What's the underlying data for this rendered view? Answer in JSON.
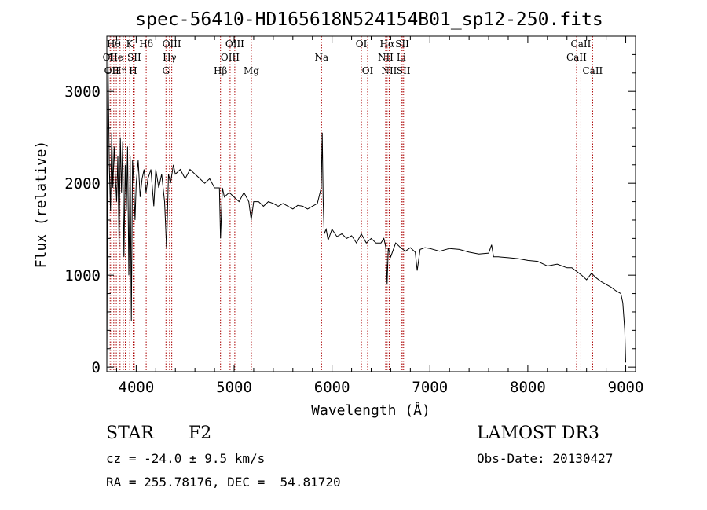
{
  "chart_data": {
    "type": "line",
    "title": "spec-56410-HD165618N524154B01_sp12-250.fits",
    "xlabel": "Wavelength (Å)",
    "ylabel": "Flux (relative)",
    "xlim": [
      3700,
      9100
    ],
    "ylim": [
      -50,
      3600
    ],
    "xticks": [
      4000,
      5000,
      6000,
      7000,
      8000,
      9000
    ],
    "xtick_labels": [
      "4000",
      "5000",
      "6000",
      "7000",
      "8000",
      "9000"
    ],
    "yticks": [
      0,
      1000,
      2000,
      3000
    ],
    "ytick_labels": [
      "0",
      "1000",
      "2000",
      "3000"
    ],
    "grid": false,
    "legend": "none",
    "line_color": "#000000",
    "marker_color": "#aa0000",
    "series": [
      {
        "x": [
          3700,
          3712,
          3725,
          3738,
          3750,
          3762,
          3775,
          3788,
          3800,
          3812,
          3825,
          3838,
          3850,
          3862,
          3875,
          3888,
          3900,
          3912,
          3925,
          3938,
          3950,
          3962,
          3975,
          3988,
          4000,
          4020,
          4040,
          4060,
          4080,
          4100,
          4120,
          4150,
          4180,
          4200,
          4230,
          4260,
          4290,
          4310,
          4330,
          4350,
          4380,
          4400,
          4450,
          4500,
          4550,
          4600,
          4650,
          4700,
          4750,
          4800,
          4850,
          4861,
          4880,
          4900,
          4950,
          5000,
          5050,
          5100,
          5150,
          5175,
          5200,
          5250,
          5300,
          5350,
          5400,
          5450,
          5500,
          5550,
          5600,
          5650,
          5700,
          5750,
          5800,
          5850,
          5890,
          5900,
          5910,
          5920,
          5940,
          5960,
          6000,
          6050,
          6100,
          6150,
          6200,
          6250,
          6300,
          6350,
          6400,
          6450,
          6500,
          6530,
          6550,
          6563,
          6575,
          6600,
          6650,
          6700,
          6750,
          6800,
          6850,
          6870,
          6900,
          6950,
          7000,
          7100,
          7200,
          7300,
          7400,
          7500,
          7600,
          7630,
          7650,
          7700,
          7800,
          7900,
          8000,
          8100,
          8200,
          8300,
          8400,
          8450,
          8500,
          8550,
          8600,
          8650,
          8700,
          8750,
          8800,
          8850,
          8900,
          8950,
          8970,
          8990,
          9000
        ],
        "y": [
          0,
          3350,
          2200,
          1700,
          2550,
          1950,
          2400,
          2050,
          1800,
          2300,
          1300,
          2500,
          1900,
          2450,
          1200,
          2200,
          1700,
          2400,
          1000,
          2300,
          500,
          2250,
          2000,
          1600,
          2000,
          2250,
          1850,
          2050,
          2150,
          1900,
          2050,
          2150,
          1750,
          2150,
          1950,
          2100,
          1800,
          1300,
          2100,
          2000,
          2200,
          2100,
          2150,
          2050,
          2150,
          2100,
          2050,
          2000,
          2050,
          1950,
          1950,
          1400,
          1950,
          1850,
          1900,
          1850,
          1800,
          1900,
          1800,
          1600,
          1800,
          1800,
          1750,
          1800,
          1780,
          1750,
          1780,
          1750,
          1720,
          1760,
          1750,
          1720,
          1750,
          1780,
          1950,
          2550,
          1800,
          1450,
          1500,
          1380,
          1500,
          1420,
          1450,
          1400,
          1430,
          1350,
          1450,
          1350,
          1400,
          1350,
          1350,
          1400,
          1300,
          900,
          1300,
          1200,
          1350,
          1300,
          1260,
          1300,
          1250,
          1050,
          1280,
          1300,
          1290,
          1260,
          1290,
          1280,
          1250,
          1230,
          1240,
          1330,
          1200,
          1200,
          1190,
          1180,
          1160,
          1150,
          1100,
          1120,
          1080,
          1080,
          1040,
          1000,
          950,
          1020,
          970,
          930,
          900,
          870,
          830,
          800,
          700,
          400,
          50
        ]
      }
    ],
    "line_markers": [
      {
        "w": 3734,
        "label": "OII",
        "row": 1
      },
      {
        "w": 3750,
        "label": "OII",
        "row": 2
      },
      {
        "w": 3771,
        "label": "Hθ",
        "row": 0
      },
      {
        "w": 3797,
        "label": "He",
        "row": 1
      },
      {
        "w": 3835,
        "label": "Hη",
        "row": 2
      },
      {
        "w": 3868,
        "label": "",
        "row": 0
      },
      {
        "w": 3889,
        "label": "",
        "row": 0
      },
      {
        "w": 3934,
        "label": "K",
        "row": 0
      },
      {
        "w": 3969,
        "label": "H",
        "row": 2
      },
      {
        "w": 3980,
        "label": "SII",
        "row": 1
      },
      {
        "w": 4102,
        "label": "Hδ",
        "row": 0
      },
      {
        "w": 4304,
        "label": "G",
        "row": 2
      },
      {
        "w": 4341,
        "label": "Hγ",
        "row": 1
      },
      {
        "w": 4363,
        "label": "OIII",
        "row": 0
      },
      {
        "w": 4861,
        "label": "Hβ",
        "row": 2
      },
      {
        "w": 4959,
        "label": "OIII",
        "row": 1
      },
      {
        "w": 5007,
        "label": "OIII",
        "row": 0
      },
      {
        "w": 5176,
        "label": "Mg",
        "row": 2
      },
      {
        "w": 5893,
        "label": "Na",
        "row": 1
      },
      {
        "w": 6300,
        "label": "OI",
        "row": 0
      },
      {
        "w": 6364,
        "label": "OI",
        "row": 2
      },
      {
        "w": 6548,
        "label": "NII",
        "row": 1
      },
      {
        "w": 6563,
        "label": "Hα",
        "row": 0
      },
      {
        "w": 6584,
        "label": "NII",
        "row": 2
      },
      {
        "w": 6707,
        "label": "Li",
        "row": 1
      },
      {
        "w": 6717,
        "label": "SII",
        "row": 0
      },
      {
        "w": 6731,
        "label": "SII",
        "row": 2
      },
      {
        "w": 8498,
        "label": "CaII",
        "row": 1
      },
      {
        "w": 8542,
        "label": "CaII",
        "row": 0
      },
      {
        "w": 8662,
        "label": "CaII",
        "row": 2
      }
    ]
  },
  "info": {
    "class": "STAR",
    "subclass": "F2",
    "cz": "cz = -24.0 ± 9.5 km/s",
    "radec": "RA = 255.78176, DEC =  54.81720",
    "survey": "LAMOST DR3",
    "obsdate": "Obs-Date: 20130427"
  }
}
